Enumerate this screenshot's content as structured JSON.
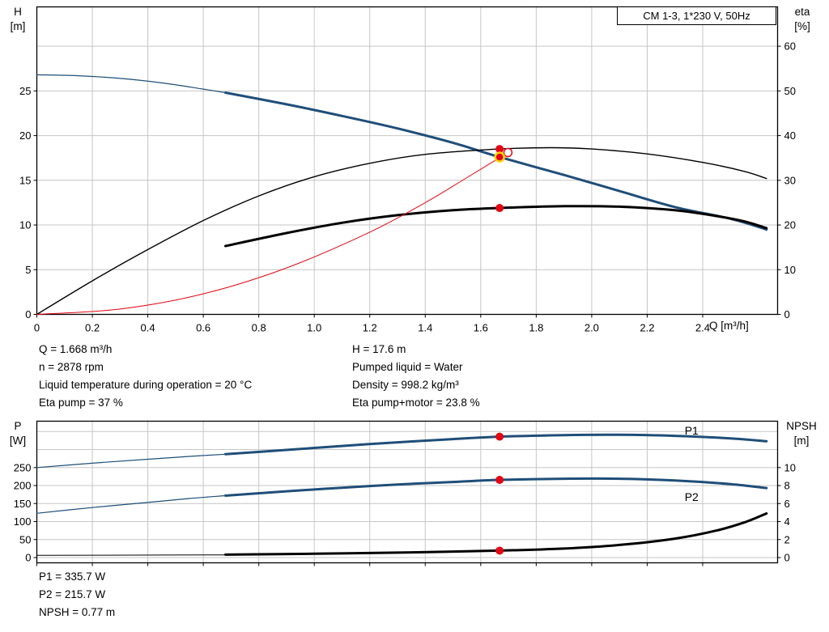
{
  "colors": {
    "curve_blue": "#1f4e79",
    "curve_black": "#000000",
    "curve_red": "#e30613",
    "marker_red": "#e30613",
    "marker_ring_yellow": "#ffd500",
    "grid_gray": "#c6c6c6"
  },
  "info_top_left": {
    "lines": [
      "Q = 1.668 m³/h",
      "n = 2878 rpm",
      "Liquid temperature during operation = 20 °C",
      "Eta pump = 37 %"
    ]
  },
  "info_top_right": {
    "lines": [
      "H = 17.6 m",
      "Pumped liquid = Water",
      "Density = 998.2 kg/m³",
      "Eta pump+motor = 23.8 %"
    ]
  },
  "info_bottom": {
    "lines": [
      "P1 = 335.7 W",
      "P2 = 215.7 W",
      "NPSH = 0.77 m"
    ]
  },
  "chart_data": [
    {
      "name": "hq-eta-chart",
      "type": "line",
      "title": "CM 1-3, 1*230 V, 50Hz",
      "x_axis": {
        "label": "Q [m³/h]",
        "min": 0,
        "max": 2.67,
        "ticks": [
          0,
          0.2,
          0.4,
          0.6,
          0.8,
          1.0,
          1.2,
          1.4,
          1.6,
          1.8,
          2.0,
          2.2,
          2.4
        ],
        "tick_labels": [
          "0",
          "0.2",
          "0.4",
          "0.6",
          "0.8",
          "1.0",
          "1.2",
          "1.4",
          "1.6",
          "1.8",
          "2.0",
          "2.2",
          "2.4"
        ],
        "show_tick_labels": true
      },
      "y_left": {
        "label": "H",
        "unit": "[m]",
        "min": 0,
        "max": 34.4,
        "ticks": [
          0,
          5,
          10,
          15,
          20,
          25
        ]
      },
      "y_right": {
        "label": "eta",
        "unit": "[%]",
        "min": 0,
        "max": 68.8,
        "ticks": [
          0,
          10,
          20,
          30,
          40,
          50,
          60
        ]
      },
      "grid_y": {
        "axis": "right",
        "values": [
          10,
          20,
          30,
          40,
          50,
          60
        ]
      },
      "series": [
        {
          "name": "pump-curve-lead",
          "axis": "left",
          "color": "#1f4e79",
          "width": 1.2,
          "points": [
            [
              0,
              26.8
            ],
            [
              0.15,
              26.7
            ],
            [
              0.3,
              26.4
            ],
            [
              0.45,
              25.9
            ],
            [
              0.6,
              25.2
            ],
            [
              0.68,
              24.8
            ]
          ]
        },
        {
          "name": "pump-curve",
          "axis": "left",
          "color": "#1f4e79",
          "width": 3,
          "points": [
            [
              0.68,
              24.8
            ],
            [
              0.9,
              23.5
            ],
            [
              1.1,
              22.2
            ],
            [
              1.3,
              20.8
            ],
            [
              1.5,
              19.2
            ],
            [
              1.668,
              17.6
            ],
            [
              1.9,
              15.6
            ],
            [
              2.1,
              13.8
            ],
            [
              2.3,
              12.0
            ],
            [
              2.5,
              10.7
            ],
            [
              2.63,
              9.5
            ]
          ]
        },
        {
          "name": "eta-pump-curve",
          "axis": "right",
          "color": "#000000",
          "width": 1.4,
          "points": [
            [
              0,
              0
            ],
            [
              0.2,
              7.5
            ],
            [
              0.4,
              14.5
            ],
            [
              0.6,
              21.0
            ],
            [
              0.8,
              26.5
            ],
            [
              1.0,
              30.8
            ],
            [
              1.2,
              33.8
            ],
            [
              1.4,
              35.8
            ],
            [
              1.668,
              37.0
            ],
            [
              1.85,
              37.3
            ],
            [
              2.0,
              37.0
            ],
            [
              2.2,
              35.9
            ],
            [
              2.4,
              34.0
            ],
            [
              2.55,
              32.0
            ],
            [
              2.63,
              30.4
            ]
          ]
        },
        {
          "name": "eta-pump-motor-curve",
          "axis": "right",
          "color": "#000000",
          "width": 3,
          "points": [
            [
              0.68,
              15.3
            ],
            [
              0.9,
              18.2
            ],
            [
              1.1,
              20.5
            ],
            [
              1.3,
              22.2
            ],
            [
              1.5,
              23.3
            ],
            [
              1.668,
              23.8
            ],
            [
              1.9,
              24.2
            ],
            [
              2.1,
              24.1
            ],
            [
              2.3,
              23.3
            ],
            [
              2.45,
              22.0
            ],
            [
              2.55,
              20.8
            ],
            [
              2.63,
              19.3
            ]
          ]
        },
        {
          "name": "system-curve",
          "axis": "left",
          "color": "#e30613",
          "width": 1,
          "points": [
            [
              0,
              0
            ],
            [
              0.3,
              0.6
            ],
            [
              0.6,
              2.3
            ],
            [
              0.9,
              5.2
            ],
            [
              1.2,
              9.2
            ],
            [
              1.4,
              12.5
            ],
            [
              1.55,
              15.3
            ],
            [
              1.698,
              18.1
            ]
          ]
        }
      ],
      "markers": [
        {
          "name": "duty-eta-pump-marker",
          "x": 1.668,
          "value": 37,
          "axis": "right",
          "style": "dot",
          "color": "#e30613"
        },
        {
          "name": "intersection-marker",
          "x": 1.698,
          "value": 18.1,
          "axis": "left",
          "style": "open",
          "color": "#e30613"
        },
        {
          "name": "duty-point-marker",
          "x": 1.668,
          "value": 17.6,
          "axis": "left",
          "style": "ring",
          "color": "#e30613",
          "ring_color": "#ffd500"
        },
        {
          "name": "duty-eta-motor-marker",
          "x": 1.668,
          "value": 23.8,
          "axis": "right",
          "style": "dot",
          "color": "#e30613"
        }
      ],
      "series_labels": []
    },
    {
      "name": "power-npsh-chart",
      "type": "line",
      "title": "",
      "x_axis": {
        "label": "",
        "min": 0,
        "max": 2.67,
        "ticks": [
          0,
          0.2,
          0.4,
          0.6,
          0.8,
          1.0,
          1.2,
          1.4,
          1.6,
          1.8,
          2.0,
          2.2,
          2.4
        ],
        "tick_labels": [],
        "show_tick_labels": false
      },
      "y_left": {
        "label": "P",
        "unit": "[W]",
        "min": -14.6,
        "max": 378.7,
        "ticks": [
          0,
          50,
          100,
          150,
          200,
          250
        ]
      },
      "y_right": {
        "label": "NPSH",
        "unit": "[m]",
        "min": -0.584,
        "max": 15.15,
        "ticks": [
          0,
          2,
          4,
          6,
          8,
          10
        ]
      },
      "grid_y": {
        "axis": "left",
        "values": [
          0,
          50,
          100,
          150,
          200,
          250,
          300,
          350
        ]
      },
      "series": [
        {
          "name": "p1-curve-lead",
          "axis": "left",
          "color": "#1f4e79",
          "width": 1.2,
          "points": [
            [
              0,
              250
            ],
            [
              0.2,
              262
            ],
            [
              0.4,
              273
            ],
            [
              0.55,
              281
            ],
            [
              0.68,
              287
            ]
          ]
        },
        {
          "name": "p1-curve",
          "axis": "left",
          "color": "#1f4e79",
          "width": 3,
          "points": [
            [
              0.68,
              287
            ],
            [
              0.9,
              299
            ],
            [
              1.1,
              310
            ],
            [
              1.3,
              320
            ],
            [
              1.5,
              329
            ],
            [
              1.668,
              335.7
            ],
            [
              1.9,
              340
            ],
            [
              2.1,
              341
            ],
            [
              2.3,
              338
            ],
            [
              2.5,
              331
            ],
            [
              2.63,
              323
            ]
          ]
        },
        {
          "name": "p2-curve-lead",
          "axis": "left",
          "color": "#1f4e79",
          "width": 1.2,
          "points": [
            [
              0,
              123
            ],
            [
              0.2,
              139
            ],
            [
              0.4,
              153
            ],
            [
              0.55,
              164
            ],
            [
              0.68,
              172
            ]
          ]
        },
        {
          "name": "p2-curve",
          "axis": "left",
          "color": "#1f4e79",
          "width": 3,
          "points": [
            [
              0.68,
              172
            ],
            [
              0.9,
              184
            ],
            [
              1.1,
              194
            ],
            [
              1.3,
              203
            ],
            [
              1.5,
              210
            ],
            [
              1.668,
              215.7
            ],
            [
              1.9,
              219
            ],
            [
              2.1,
              219
            ],
            [
              2.3,
              214
            ],
            [
              2.5,
              204
            ],
            [
              2.63,
              193
            ]
          ]
        },
        {
          "name": "npsh-curve-lead",
          "axis": "right",
          "color": "#000000",
          "width": 1,
          "points": [
            [
              0,
              0.25
            ],
            [
              0.35,
              0.27
            ],
            [
              0.68,
              0.3
            ]
          ]
        },
        {
          "name": "npsh-curve",
          "axis": "right",
          "color": "#000000",
          "width": 3,
          "points": [
            [
              0.68,
              0.32
            ],
            [
              1.0,
              0.42
            ],
            [
              1.3,
              0.55
            ],
            [
              1.668,
              0.77
            ],
            [
              1.9,
              1.0
            ],
            [
              2.1,
              1.4
            ],
            [
              2.3,
              2.1
            ],
            [
              2.45,
              3.0
            ],
            [
              2.55,
              3.9
            ],
            [
              2.63,
              4.9
            ]
          ]
        }
      ],
      "markers": [
        {
          "name": "duty-p1-marker",
          "x": 1.668,
          "value": 335.7,
          "axis": "left",
          "style": "dot",
          "color": "#e30613"
        },
        {
          "name": "duty-p2-marker",
          "x": 1.668,
          "value": 215.7,
          "axis": "left",
          "style": "dot",
          "color": "#e30613"
        },
        {
          "name": "duty-npsh-marker",
          "x": 1.668,
          "value": 0.77,
          "axis": "right",
          "style": "dot",
          "color": "#e30613"
        }
      ],
      "series_labels": [
        {
          "text": "P1",
          "x": 2.36,
          "value": 352,
          "axis": "left",
          "color": "#1f4e79"
        },
        {
          "text": "P2",
          "x": 2.36,
          "value": 168,
          "axis": "left",
          "color": "#1f4e79"
        }
      ]
    }
  ]
}
